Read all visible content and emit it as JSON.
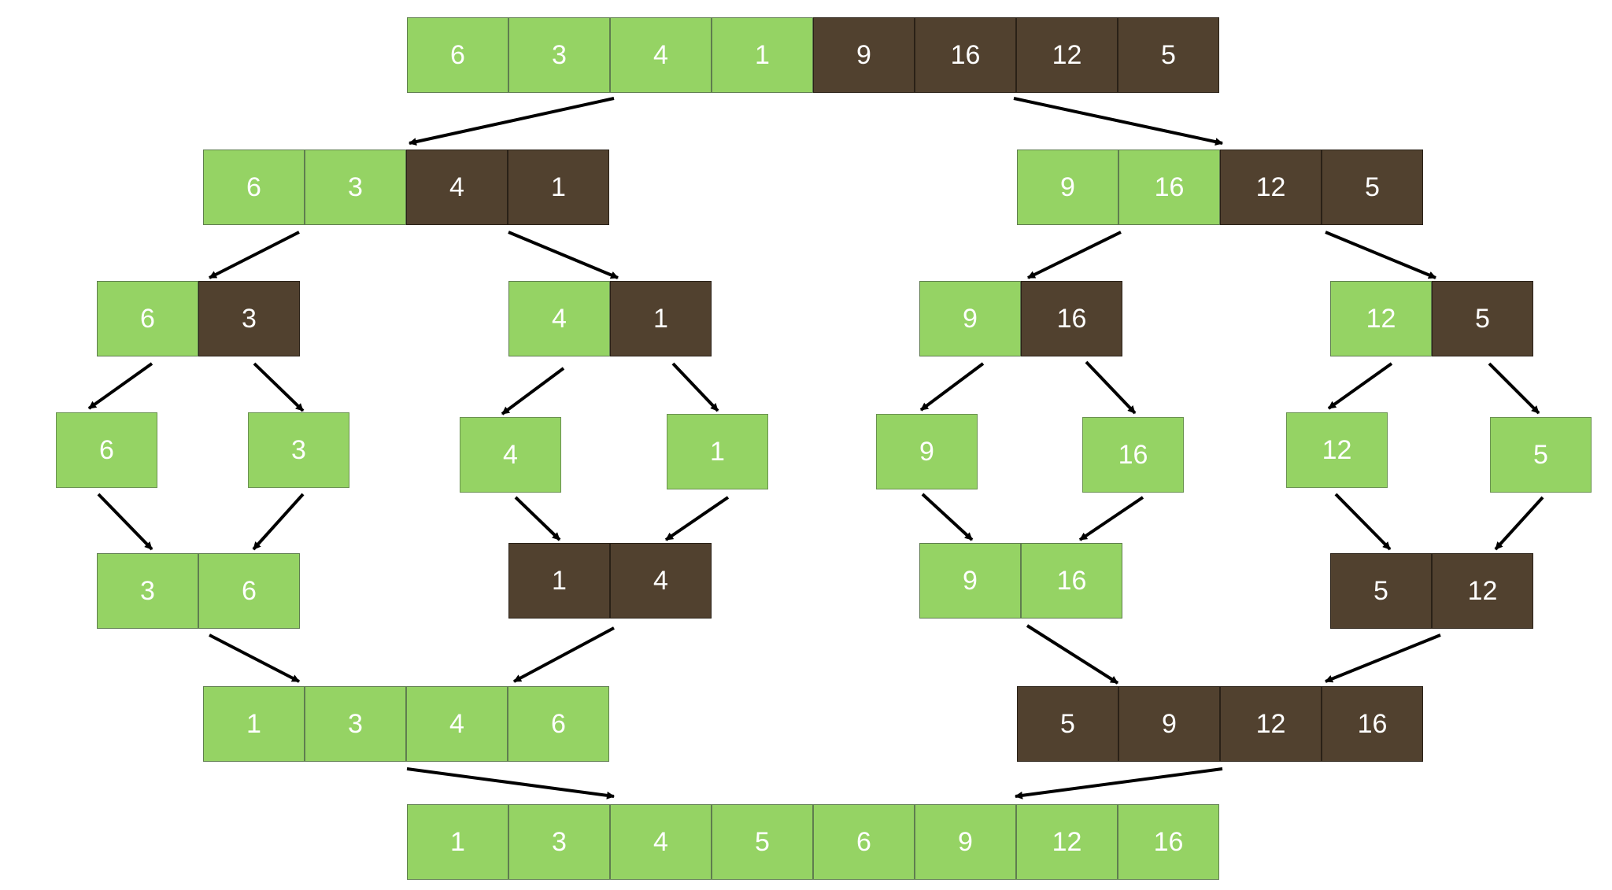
{
  "colors": {
    "green": "#95d364",
    "brown": "#51412f",
    "arrow": "#000000"
  },
  "rows": [
    {
      "groups": [
        {
          "id": "r0g0",
          "values": [
            "6",
            "3",
            "4",
            "1",
            "9",
            "16",
            "12",
            "5"
          ],
          "fills": [
            "green",
            "green",
            "green",
            "green",
            "brown",
            "brown",
            "brown",
            "brown"
          ]
        }
      ]
    },
    {
      "groups": [
        {
          "id": "r1g0",
          "values": [
            "6",
            "3",
            "4",
            "1"
          ],
          "fills": [
            "green",
            "green",
            "brown",
            "brown"
          ]
        },
        {
          "id": "r1g1",
          "values": [
            "9",
            "16",
            "12",
            "5"
          ],
          "fills": [
            "green",
            "green",
            "brown",
            "brown"
          ]
        }
      ]
    },
    {
      "groups": [
        {
          "id": "r2g0",
          "values": [
            "6",
            "3"
          ],
          "fills": [
            "green",
            "brown"
          ]
        },
        {
          "id": "r2g1",
          "values": [
            "4",
            "1"
          ],
          "fills": [
            "green",
            "brown"
          ]
        },
        {
          "id": "r2g2",
          "values": [
            "9",
            "16"
          ],
          "fills": [
            "green",
            "brown"
          ]
        },
        {
          "id": "r2g3",
          "values": [
            "12",
            "5"
          ],
          "fills": [
            "green",
            "brown"
          ]
        }
      ]
    },
    {
      "groups": [
        {
          "id": "r3g0",
          "values": [
            "6"
          ],
          "fills": [
            "green"
          ]
        },
        {
          "id": "r3g1",
          "values": [
            "3"
          ],
          "fills": [
            "green"
          ]
        },
        {
          "id": "r3g2",
          "values": [
            "4"
          ],
          "fills": [
            "green"
          ]
        },
        {
          "id": "r3g3",
          "values": [
            "1"
          ],
          "fills": [
            "green"
          ]
        },
        {
          "id": "r3g4",
          "values": [
            "9"
          ],
          "fills": [
            "green"
          ]
        },
        {
          "id": "r3g5",
          "values": [
            "16"
          ],
          "fills": [
            "green"
          ]
        },
        {
          "id": "r3g6",
          "values": [
            "12"
          ],
          "fills": [
            "green"
          ]
        },
        {
          "id": "r3g7",
          "values": [
            "5"
          ],
          "fills": [
            "green"
          ]
        }
      ]
    },
    {
      "groups": [
        {
          "id": "r4g0",
          "values": [
            "3",
            "6"
          ],
          "fills": [
            "green",
            "green"
          ]
        },
        {
          "id": "r4g1",
          "values": [
            "1",
            "4"
          ],
          "fills": [
            "brown",
            "brown"
          ]
        },
        {
          "id": "r4g2",
          "values": [
            "9",
            "16"
          ],
          "fills": [
            "green",
            "green"
          ]
        },
        {
          "id": "r4g3",
          "values": [
            "5",
            "12"
          ],
          "fills": [
            "brown",
            "brown"
          ]
        }
      ]
    },
    {
      "groups": [
        {
          "id": "r5g0",
          "values": [
            "1",
            "3",
            "4",
            "6"
          ],
          "fills": [
            "green",
            "green",
            "green",
            "green"
          ]
        },
        {
          "id": "r5g1",
          "values": [
            "5",
            "9",
            "12",
            "16"
          ],
          "fills": [
            "brown",
            "brown",
            "brown",
            "brown"
          ]
        }
      ]
    },
    {
      "groups": [
        {
          "id": "r6g0",
          "values": [
            "1",
            "3",
            "4",
            "5",
            "6",
            "9",
            "12",
            "16"
          ],
          "fills": [
            "green",
            "green",
            "green",
            "green",
            "green",
            "green",
            "green",
            "green"
          ]
        }
      ]
    }
  ],
  "links": [
    {
      "from": "r0g0",
      "to": "r1g0"
    },
    {
      "from": "r0g0",
      "to": "r1g1"
    },
    {
      "from": "r1g0",
      "to": "r2g0"
    },
    {
      "from": "r1g0",
      "to": "r2g1"
    },
    {
      "from": "r1g1",
      "to": "r2g2"
    },
    {
      "from": "r1g1",
      "to": "r2g3"
    },
    {
      "from": "r2g0",
      "to": "r3g0"
    },
    {
      "from": "r2g0",
      "to": "r3g1"
    },
    {
      "from": "r2g1",
      "to": "r3g2"
    },
    {
      "from": "r2g1",
      "to": "r3g3"
    },
    {
      "from": "r2g2",
      "to": "r3g4"
    },
    {
      "from": "r2g2",
      "to": "r3g5"
    },
    {
      "from": "r2g3",
      "to": "r3g6"
    },
    {
      "from": "r2g3",
      "to": "r3g7"
    },
    {
      "from": "r3g0",
      "to": "r4g0"
    },
    {
      "from": "r3g1",
      "to": "r4g0"
    },
    {
      "from": "r3g2",
      "to": "r4g1"
    },
    {
      "from": "r3g3",
      "to": "r4g1"
    },
    {
      "from": "r3g4",
      "to": "r4g2"
    },
    {
      "from": "r3g5",
      "to": "r4g2"
    },
    {
      "from": "r3g6",
      "to": "r4g3"
    },
    {
      "from": "r3g7",
      "to": "r4g3"
    },
    {
      "from": "r4g0",
      "to": "r5g0"
    },
    {
      "from": "r4g1",
      "to": "r5g0"
    },
    {
      "from": "r4g2",
      "to": "r5g1"
    },
    {
      "from": "r4g3",
      "to": "r5g1"
    },
    {
      "from": "r5g0",
      "to": "r6g0"
    },
    {
      "from": "r5g1",
      "to": "r6g0"
    }
  ]
}
